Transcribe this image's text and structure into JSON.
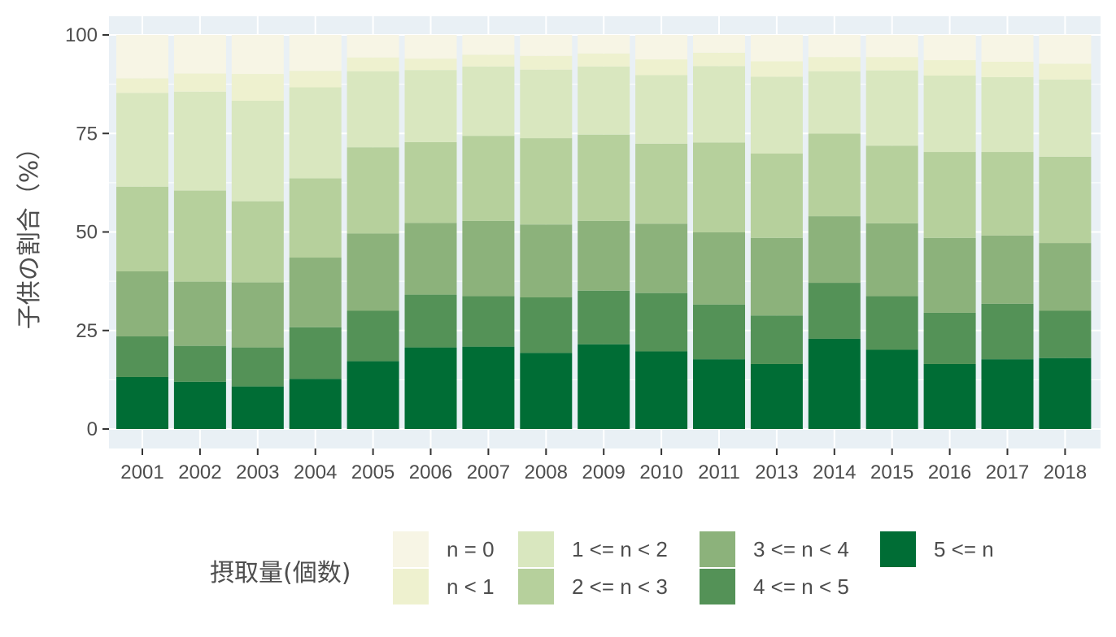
{
  "chart_data": {
    "type": "bar",
    "stacked": true,
    "title": "",
    "xlabel": "",
    "ylabel": "子供の割合（%）",
    "ylim": [
      0,
      100
    ],
    "yticks": [
      0,
      25,
      50,
      75,
      100
    ],
    "grid": true,
    "legend_position": "bottom",
    "legend_title": "摂取量(個数)",
    "categories": [
      "2001",
      "2002",
      "2003",
      "2004",
      "2005",
      "2006",
      "2007",
      "2008",
      "2009",
      "2010",
      "2011",
      "2013",
      "2014",
      "2015",
      "2016",
      "2017",
      "2018"
    ],
    "series": [
      {
        "name": "5 <= n",
        "color": "#006d35",
        "values": [
          13.2,
          12.0,
          10.8,
          12.7,
          17.2,
          20.7,
          20.9,
          19.3,
          21.5,
          19.7,
          17.7,
          16.5,
          22.9,
          20.1,
          16.5,
          17.7,
          18.0
        ]
      },
      {
        "name": "4 <= n < 5",
        "color": "#549257",
        "values": [
          10.3,
          9.1,
          9.9,
          13.1,
          12.8,
          13.4,
          12.8,
          14.1,
          13.6,
          14.8,
          13.9,
          12.3,
          14.2,
          13.6,
          13.0,
          14.1,
          12.0
        ]
      },
      {
        "name": "3 <= n < 4",
        "color": "#8cb27b",
        "values": [
          16.5,
          16.3,
          16.5,
          17.7,
          19.6,
          18.2,
          19.1,
          18.5,
          17.7,
          17.6,
          18.3,
          19.7,
          16.9,
          18.5,
          19.0,
          17.3,
          17.2
        ]
      },
      {
        "name": "2 <= n < 3",
        "color": "#b6d09c",
        "values": [
          21.5,
          23.1,
          20.6,
          20.1,
          21.9,
          20.5,
          21.6,
          21.9,
          21.9,
          20.3,
          22.8,
          21.4,
          21.0,
          19.7,
          21.8,
          21.2,
          21.9
        ]
      },
      {
        "name": "1 <= n < 2",
        "color": "#d9e7bf",
        "values": [
          23.8,
          25.1,
          25.5,
          23.1,
          19.3,
          18.3,
          17.6,
          17.4,
          17.3,
          17.4,
          19.4,
          19.5,
          15.8,
          19.1,
          19.4,
          19.0,
          19.6
        ]
      },
      {
        "name": "n < 1",
        "color": "#eef1cf",
        "values": [
          3.7,
          4.6,
          6.8,
          4.2,
          3.5,
          2.9,
          3.0,
          3.5,
          3.3,
          4.0,
          3.4,
          3.9,
          3.6,
          3.4,
          3.9,
          3.9,
          4.0
        ]
      },
      {
        "name": "n = 0",
        "color": "#f7f5e5",
        "values": [
          11.0,
          9.8,
          9.9,
          9.1,
          5.7,
          6.0,
          5.0,
          5.3,
          4.7,
          6.2,
          4.5,
          6.7,
          5.6,
          5.6,
          6.4,
          6.8,
          7.3
        ]
      }
    ],
    "legend_order": [
      "n = 0",
      "n < 1",
      "1 <= n < 2",
      "2 <= n < 3",
      "3 <= n < 4",
      "4 <= n < 5",
      "5 <= n"
    ],
    "panel_background": "#e9f0f5",
    "text_color": "#4d4d4d"
  }
}
